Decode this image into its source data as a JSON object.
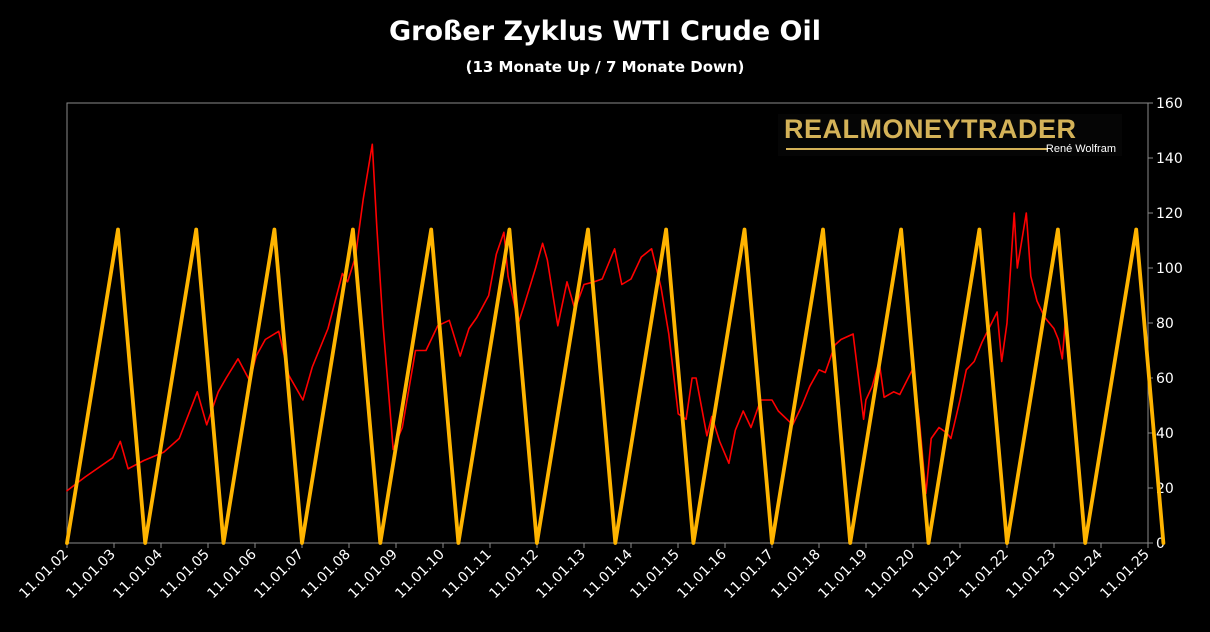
{
  "chart_data": {
    "type": "line",
    "title": "Großer Zyklus WTI Crude Oil",
    "subtitle": "(13 Monate Up / 7 Monate Down)",
    "xlabel": "",
    "ylabel": "",
    "ylim": [
      0,
      160
    ],
    "y_ticks": [
      0,
      20,
      40,
      60,
      80,
      100,
      120,
      140,
      160
    ],
    "y_axis_side": "right",
    "x_range": [
      "2002-01-11",
      "2025-01-11"
    ],
    "x_tick_labels": [
      "11.01.02",
      "11.01.03",
      "11.01.04",
      "11.01.05",
      "11.01.06",
      "11.01.07",
      "11.01.08",
      "11.01.09",
      "11.01.10",
      "11.01.11",
      "11.01.12",
      "11.01.13",
      "11.01.14",
      "11.01.15",
      "11.01.16",
      "11.01.17",
      "11.01.18",
      "11.01.19",
      "11.01.20",
      "11.01.21",
      "11.01.22",
      "11.01.23",
      "11.01.24",
      "11.01.25"
    ],
    "grid": false,
    "legend": "none",
    "watermark": {
      "main": "REALMONEYTRADER",
      "sub": "René Wolfram"
    },
    "series": [
      {
        "color": "#ff0000",
        "x": [
          "2002-01-11",
          "2002-06-01",
          "2003-01-01",
          "2003-03-01",
          "2003-05-01",
          "2003-09-01",
          "2004-02-01",
          "2004-06-01",
          "2004-10-20",
          "2005-01-01",
          "2005-04-01",
          "2005-06-01",
          "2005-09-01",
          "2005-12-01",
          "2006-01-20",
          "2006-04-01",
          "2006-07-14",
          "2006-10-01",
          "2007-01-18",
          "2007-04-01",
          "2007-08-01",
          "2007-11-21",
          "2008-01-01",
          "2008-03-01",
          "2008-05-01",
          "2008-07-11",
          "2008-08-15",
          "2008-10-01",
          "2008-12-20",
          "2009-03-01",
          "2009-06-11",
          "2009-09-01",
          "2009-12-01",
          "2010-03-01",
          "2010-05-25",
          "2010-08-01",
          "2010-10-01",
          "2011-01-01",
          "2011-03-01",
          "2011-04-29",
          "2011-06-01",
          "2011-08-20",
          "2011-10-01",
          "2012-01-01",
          "2012-02-24",
          "2012-04-01",
          "2012-06-21",
          "2012-09-01",
          "2012-11-01",
          "2013-01-11",
          "2013-04-01",
          "2013-06-01",
          "2013-09-06",
          "2013-11-01",
          "2014-01-11",
          "2014-04-01",
          "2014-06-20",
          "2014-09-01",
          "2014-11-01",
          "2015-01-13",
          "2015-03-15",
          "2015-05-01",
          "2015-06-01",
          "2015-08-24",
          "2015-10-01",
          "2015-12-01",
          "2016-02-11",
          "2016-04-01",
          "2016-06-01",
          "2016-08-01",
          "2016-10-15",
          "2017-01-11",
          "2017-03-01",
          "2017-06-21",
          "2017-09-01",
          "2017-11-01",
          "2018-01-11",
          "2018-03-01",
          "2018-05-15",
          "2018-07-01",
          "2018-10-03",
          "2018-12-24",
          "2019-01-11",
          "2019-03-01",
          "2019-04-23",
          "2019-06-01",
          "2019-08-15",
          "2019-10-01",
          "2020-01-06",
          "2020-03-01",
          "2020-04-21",
          "2020-06-01",
          "2020-08-01",
          "2020-10-01",
          "2020-11-01",
          "2021-01-11",
          "2021-03-01",
          "2021-05-01",
          "2021-07-01",
          "2021-10-26",
          "2021-12-01",
          "2022-01-11",
          "2022-03-08",
          "2022-04-01",
          "2022-06-10",
          "2022-07-15",
          "2022-09-01",
          "2022-11-01",
          "2023-01-11",
          "2023-02-15",
          "2023-03-17",
          "2023-04-12",
          "2023-05-01"
        ],
        "values": [
          19,
          24,
          31,
          37,
          27,
          30,
          33,
          38,
          55,
          43,
          55,
          60,
          67,
          59,
          68,
          74,
          77,
          61,
          52,
          64,
          78,
          98,
          95,
          104,
          125,
          145,
          115,
          80,
          34,
          42,
          70,
          70,
          79,
          81,
          68,
          78,
          82,
          90,
          105,
          113,
          97,
          80,
          86,
          100,
          109,
          103,
          79,
          95,
          85,
          94,
          95,
          96,
          107,
          94,
          96,
          104,
          107,
          93,
          76,
          47,
          45,
          60,
          60,
          39,
          46,
          37,
          29,
          41,
          48,
          42,
          52,
          52,
          48,
          43,
          50,
          57,
          63,
          62,
          72,
          74,
          76,
          45,
          52,
          57,
          66,
          53,
          55,
          54,
          63,
          45,
          18,
          38,
          42,
          40,
          38,
          52,
          63,
          66,
          73,
          84,
          66,
          80,
          120,
          100,
          120,
          97,
          88,
          82,
          78,
          74,
          67,
          82,
          75
        ]
      },
      {
        "color": "#ffb400",
        "x": [
          "2002-01-11",
          "2003-02-11",
          "2003-09-11",
          "2004-10-11",
          "2005-05-11",
          "2006-06-11",
          "2007-01-11",
          "2008-02-11",
          "2008-09-11",
          "2009-10-11",
          "2010-05-11",
          "2011-06-11",
          "2012-01-11",
          "2013-02-11",
          "2013-09-11",
          "2014-10-11",
          "2015-05-11",
          "2016-06-11",
          "2017-01-11",
          "2018-02-11",
          "2018-09-11",
          "2019-10-11",
          "2020-05-11",
          "2021-06-11",
          "2022-01-11",
          "2023-02-11",
          "2023-09-11",
          "2024-10-11",
          "2025-05-11"
        ],
        "values": [
          0,
          114,
          0,
          114,
          0,
          114,
          0,
          114,
          0,
          114,
          0,
          114,
          0,
          114,
          0,
          114,
          0,
          114,
          0,
          114,
          0,
          114,
          0,
          114,
          0,
          114,
          0,
          114,
          0
        ]
      }
    ]
  }
}
